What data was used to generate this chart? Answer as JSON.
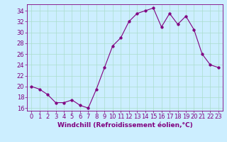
{
  "x": [
    0,
    1,
    2,
    3,
    4,
    5,
    6,
    7,
    8,
    9,
    10,
    11,
    12,
    13,
    14,
    15,
    16,
    17,
    18,
    19,
    20,
    21,
    22,
    23
  ],
  "y": [
    20.0,
    19.5,
    18.5,
    17.0,
    17.0,
    17.5,
    16.5,
    16.0,
    19.5,
    23.5,
    27.5,
    29.0,
    32.0,
    33.5,
    34.0,
    34.5,
    31.0,
    33.5,
    31.5,
    33.0,
    30.5,
    26.0,
    24.0,
    23.5
  ],
  "line_color": "#800080",
  "marker": "o",
  "marker_size": 2.5,
  "xlabel": "Windchill (Refroidissement éolien,°C)",
  "xlim": [
    -0.5,
    23.5
  ],
  "ylim": [
    15.5,
    35.2
  ],
  "yticks": [
    16,
    18,
    20,
    22,
    24,
    26,
    28,
    30,
    32,
    34
  ],
  "xticks": [
    0,
    1,
    2,
    3,
    4,
    5,
    6,
    7,
    8,
    9,
    10,
    11,
    12,
    13,
    14,
    15,
    16,
    17,
    18,
    19,
    20,
    21,
    22,
    23
  ],
  "bg_color": "#cceeff",
  "grid_color": "#aaddcc",
  "axis_color": "#800080",
  "label_color": "#800080",
  "tick_color": "#800080",
  "xlabel_fontsize": 6.5,
  "tick_fontsize": 6.0
}
